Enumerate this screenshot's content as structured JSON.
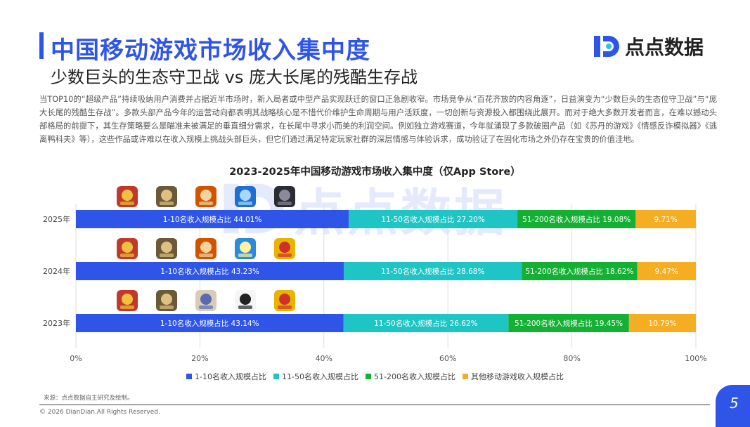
{
  "header": {
    "title": "中国移动游戏市场收入集中度",
    "subtitle": "少数巨头的生态守卫战 vs 庞大长尾的残酷生存战",
    "logo_text": "点点数据"
  },
  "description": "当TOP10的“超级产品”持续吸纳用户消费并占据近半市场时，新入局者或中型产品实现跃迁的窗口正急剧收窄。市场竞争从“百花齐放的内容角逐”，日益演变为“少数巨头的生态位守卫战”与“庞大长尾的残酷生存战”。多款头部产品今年的运营动向都表明其战略核心是不惜代价维护生命周期与用户活跃度，一切创新与资源投入都围绕此展开。而对于绝大多数开发者而言，在难以撼动头部格局的前提下，其生存策略要么是瞄准未被满足的垂直细分需求，在长尾中寻求小而美的利润空间。例如独立游戏赛道，今年就涌现了多款破圈产品（如《苏丹的游戏》《情感反诈模拟器》《逃离鸭科夫》等），这些作品或许难以在收入规模上挑战头部巨头，但它们通过满足特定玩家社群的深层情感与体验诉求，成功验证了在固化市场之外仍存在宝贵的价值洼地。",
  "colors": {
    "accent": "#2f55e8",
    "series": [
      "#2f55e8",
      "#1fc4c4",
      "#14b034",
      "#f5ad21"
    ]
  },
  "chart_data": {
    "type": "bar",
    "orientation": "horizontal",
    "stacked": true,
    "title": "2023-2025年中国移动游戏市场收入集中度（仅App Store）",
    "categories": [
      "2025年",
      "2024年",
      "2023年"
    ],
    "series": [
      {
        "name": "1-10名收入规模占比",
        "label_prefix": "1-10名收入规模占比",
        "values": [
          44.01,
          43.23,
          43.14
        ]
      },
      {
        "name": "11-50名收入规模占比",
        "label_prefix": "11-50名收入规模占比",
        "values": [
          27.2,
          28.68,
          26.62
        ]
      },
      {
        "name": "51-200名收入规模占比",
        "label_prefix": "51-200名收入规模占比",
        "values": [
          19.08,
          18.62,
          19.45
        ]
      },
      {
        "name": "其他移动游戏收入规模占比",
        "label_prefix": "",
        "values": [
          9.71,
          9.47,
          10.79
        ]
      }
    ],
    "xlim": [
      0,
      100
    ],
    "xticks": [
      "0%",
      "20%",
      "40%",
      "60%",
      "80%",
      "100%"
    ],
    "grid": true,
    "legend_position": "bottom",
    "game_icons": [
      [
        "game-icon-1",
        "game-icon-2",
        "game-icon-3",
        "game-icon-4",
        "game-icon-5"
      ],
      [
        "game-icon-1",
        "game-icon-2",
        "game-icon-3",
        "game-icon-6",
        "game-icon-7"
      ],
      [
        "game-icon-1",
        "game-icon-2",
        "game-icon-8",
        "game-icon-9",
        "game-icon-7"
      ]
    ]
  },
  "footer": {
    "source": "来源：点点数据自主研究及绘制。",
    "copyright": "© 2026 DianDian.All Rights Reserved.",
    "page": "5"
  }
}
